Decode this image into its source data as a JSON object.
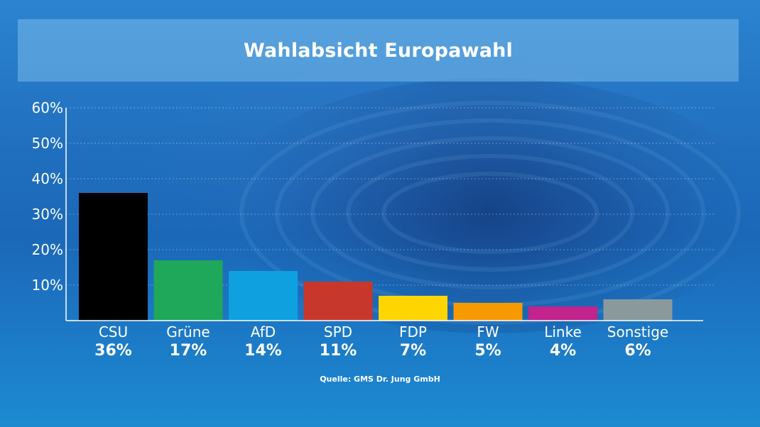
{
  "header": {
    "title": "Wahlabsicht Europawahl"
  },
  "footer": {
    "source": "Quelle: GMS Dr. Jung GmbH"
  },
  "chart_data": {
    "type": "bar",
    "title": "Wahlabsicht Europawahl",
    "xlabel": "",
    "ylabel": "",
    "ylim": [
      0,
      60
    ],
    "y_ticks": [
      "10%",
      "20%",
      "30%",
      "40%",
      "50%",
      "60%"
    ],
    "y_tick_values": [
      10,
      20,
      30,
      40,
      50,
      60
    ],
    "grid": true,
    "categories": [
      "CSU",
      "Grüne",
      "AfD",
      "SPD",
      "FDP",
      "FW",
      "Linke",
      "Sonstige"
    ],
    "values": [
      36,
      17,
      14,
      11,
      7,
      5,
      4,
      6
    ],
    "value_labels": [
      "36%",
      "17%",
      "14%",
      "11%",
      "7%",
      "5%",
      "4%",
      "6%"
    ],
    "colors": [
      "#000000",
      "#1fa85a",
      "#0fa0e0",
      "#c8372b",
      "#ffd500",
      "#f79a00",
      "#c2238c",
      "#8a9a9c"
    ]
  }
}
